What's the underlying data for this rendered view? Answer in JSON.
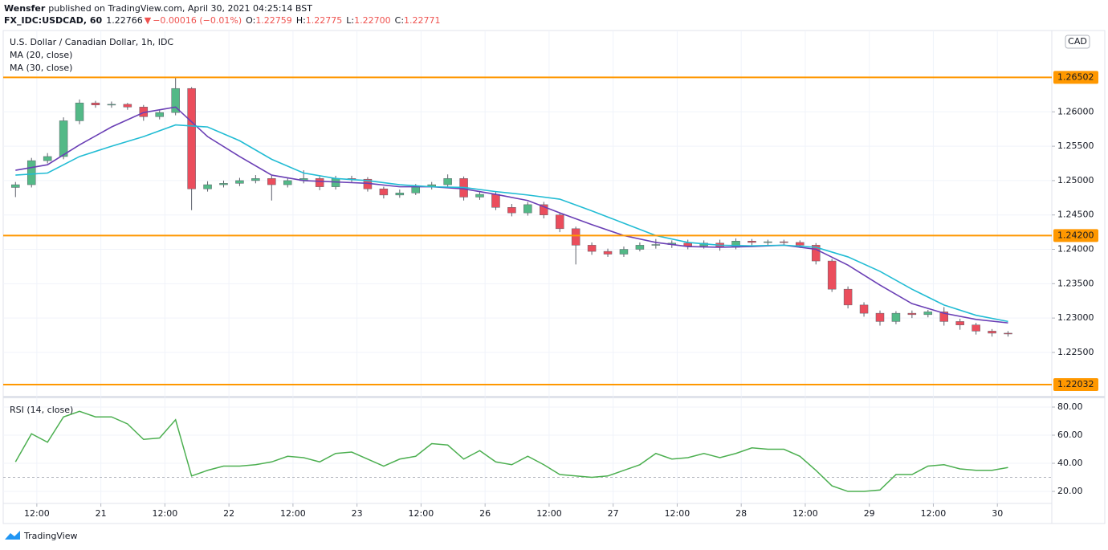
{
  "header": {
    "publisher": "Wensfer",
    "published": "published on TradingView.com, April 30, 2021 04:25:14 BST",
    "symbol": "FX_IDC:USDCAD, 60",
    "last": "1.22766",
    "direction": "▼",
    "change": "−0.00016 (−0.01%)",
    "ohlc": [
      {
        "label": "O:",
        "value": "1.22759"
      },
      {
        "label": "H:",
        "value": "1.22775"
      },
      {
        "label": "L:",
        "value": "1.22700"
      },
      {
        "label": "C:",
        "value": "1.22771"
      }
    ]
  },
  "footer": {
    "brand": "TradingView"
  },
  "chart_data": [
    {
      "type": "candlestick",
      "title": "U.S. Dollar / Canadian Dollar, 1h, IDC",
      "currency": "CAD",
      "up_color": "#53b987",
      "down_color": "#eb4d5c",
      "grid": true,
      "xlim": [
        5.7,
        202.2
      ],
      "ylim": [
        1.2188,
        1.2716
      ],
      "yticks": [
        {
          "value": 1.26,
          "label": "1.26000"
        },
        {
          "value": 1.255,
          "label": "1.25500"
        },
        {
          "value": 1.25,
          "label": "1.25000"
        },
        {
          "value": 1.245,
          "label": "1.24500"
        },
        {
          "value": 1.24,
          "label": "1.24000"
        },
        {
          "value": 1.235,
          "label": "1.23500"
        },
        {
          "value": 1.23,
          "label": "1.23000"
        },
        {
          "value": 1.225,
          "label": "1.22500"
        }
      ],
      "x": [
        8,
        11,
        14,
        17,
        20,
        23,
        26,
        29,
        32,
        35,
        38,
        41,
        44,
        47,
        50,
        53,
        56,
        59,
        62,
        65,
        68,
        71,
        74,
        77,
        80,
        83,
        86,
        89,
        92,
        95,
        98,
        101,
        104,
        107,
        110,
        113,
        116,
        119,
        122,
        125,
        128,
        131,
        134,
        137,
        140,
        143,
        146,
        149,
        152,
        155,
        158,
        161,
        164,
        167,
        170,
        173,
        176,
        179,
        182,
        185,
        188,
        191,
        194
      ],
      "open": [
        1.249,
        1.2494,
        1.2529,
        1.2535,
        1.2587,
        1.2613,
        1.261,
        1.2611,
        1.2607,
        1.2593,
        1.2599,
        1.2634,
        1.2488,
        1.2494,
        1.2496,
        1.25,
        1.2503,
        1.2494,
        1.25,
        1.2503,
        1.2491,
        1.2503,
        1.2502,
        1.2488,
        1.2479,
        1.2482,
        1.2491,
        1.2494,
        1.2503,
        1.2476,
        1.248,
        1.2461,
        1.2453,
        1.2465,
        1.245,
        1.243,
        1.2406,
        1.2397,
        1.2393,
        1.24,
        1.2406,
        1.2407,
        1.2409,
        1.2405,
        1.2409,
        1.2403,
        1.2412,
        1.241,
        1.2411,
        1.241,
        1.2406,
        1.2383,
        1.2342,
        1.2319,
        1.2307,
        1.2295,
        1.2307,
        1.2305,
        1.2309,
        1.2295,
        1.229,
        1.2281,
        1.2278
      ],
      "high": [
        1.2498,
        1.2533,
        1.254,
        1.2592,
        1.2618,
        1.2616,
        1.2615,
        1.2613,
        1.261,
        1.2603,
        1.265,
        1.2636,
        1.2499,
        1.25,
        1.2504,
        1.2508,
        1.2507,
        1.2504,
        1.2515,
        1.2506,
        1.2507,
        1.2507,
        1.2505,
        1.2491,
        1.2487,
        1.2495,
        1.2498,
        1.2509,
        1.2506,
        1.2484,
        1.2484,
        1.2466,
        1.2469,
        1.2469,
        1.2453,
        1.2433,
        1.241,
        1.2401,
        1.2404,
        1.241,
        1.2415,
        1.2413,
        1.2414,
        1.2413,
        1.2414,
        1.2416,
        1.2415,
        1.2414,
        1.2414,
        1.2413,
        1.2409,
        1.2386,
        1.2346,
        1.2323,
        1.2311,
        1.231,
        1.2311,
        1.2312,
        1.2316,
        1.2299,
        1.2293,
        1.2284,
        1.2281
      ],
      "low": [
        1.2476,
        1.249,
        1.2525,
        1.2531,
        1.2582,
        1.2606,
        1.2606,
        1.2603,
        1.2587,
        1.2589,
        1.2595,
        1.2457,
        1.2484,
        1.249,
        1.2492,
        1.2496,
        1.2471,
        1.249,
        1.2496,
        1.2486,
        1.2487,
        1.2498,
        1.2484,
        1.2474,
        1.2475,
        1.2479,
        1.2487,
        1.249,
        1.2471,
        1.2472,
        1.2457,
        1.2448,
        1.2449,
        1.2445,
        1.2425,
        1.2378,
        1.2392,
        1.2389,
        1.2389,
        1.2397,
        1.2401,
        1.2402,
        1.24,
        1.2401,
        1.2398,
        1.24,
        1.2406,
        1.2405,
        1.2406,
        1.2402,
        1.2378,
        1.2338,
        1.2314,
        1.2302,
        1.2289,
        1.2291,
        1.23,
        1.2301,
        1.2289,
        1.2283,
        1.2276,
        1.2273,
        1.2273
      ],
      "close": [
        1.2494,
        1.2529,
        1.2535,
        1.2587,
        1.2613,
        1.261,
        1.2611,
        1.2607,
        1.2593,
        1.2599,
        1.2634,
        1.2488,
        1.2494,
        1.2496,
        1.25,
        1.2503,
        1.2494,
        1.25,
        1.2503,
        1.2491,
        1.2503,
        1.2502,
        1.2488,
        1.2479,
        1.2482,
        1.2491,
        1.2494,
        1.2503,
        1.2476,
        1.248,
        1.2461,
        1.2453,
        1.2465,
        1.245,
        1.243,
        1.2406,
        1.2397,
        1.2393,
        1.24,
        1.2406,
        1.2407,
        1.2409,
        1.2405,
        1.2409,
        1.2403,
        1.2412,
        1.241,
        1.2411,
        1.241,
        1.2406,
        1.2383,
        1.2342,
        1.2319,
        1.2307,
        1.2295,
        1.2307,
        1.2305,
        1.2309,
        1.2295,
        1.229,
        1.2281,
        1.2278,
        1.2277
      ],
      "overlays": [
        {
          "name": "MA (20, close)",
          "color": "#6a3fb5",
          "x": [
            8,
            14,
            20,
            26,
            32,
            38,
            44,
            50,
            56,
            62,
            68,
            74,
            80,
            86,
            92,
            98,
            104,
            110,
            116,
            122,
            128,
            134,
            140,
            146,
            152,
            158,
            164,
            170,
            176,
            182,
            188,
            194
          ],
          "values": [
            1.2515,
            1.2523,
            1.2552,
            1.2578,
            1.2599,
            1.2607,
            1.2564,
            1.2535,
            1.2508,
            1.25,
            1.2498,
            1.2496,
            1.2491,
            1.2491,
            1.2488,
            1.248,
            1.2471,
            1.2453,
            1.2436,
            1.242,
            1.241,
            1.2404,
            1.2403,
            1.2404,
            1.2406,
            1.24,
            1.2377,
            1.2348,
            1.2321,
            1.2307,
            1.2298,
            1.2293
          ]
        },
        {
          "name": "MA (30, close)",
          "color": "#22bcd4",
          "x": [
            8,
            14,
            20,
            26,
            32,
            38,
            44,
            50,
            56,
            62,
            68,
            74,
            80,
            86,
            92,
            98,
            104,
            110,
            116,
            122,
            128,
            134,
            140,
            146,
            152,
            158,
            164,
            170,
            176,
            182,
            188,
            194
          ],
          "values": [
            1.2508,
            1.2511,
            1.2535,
            1.255,
            1.2564,
            1.2581,
            1.2578,
            1.2558,
            1.2531,
            1.2511,
            1.2503,
            1.25,
            1.2494,
            1.2491,
            1.249,
            1.2484,
            1.2479,
            1.2473,
            1.2456,
            1.2438,
            1.242,
            1.241,
            1.2406,
            1.2405,
            1.2406,
            1.2403,
            1.2389,
            1.2368,
            1.2342,
            1.2319,
            1.2304,
            1.2295
          ]
        }
      ],
      "hlines": [
        {
          "value": 1.26502,
          "label": "1.26502"
        },
        {
          "value": 1.242,
          "label": "1.24200"
        },
        {
          "value": 1.22032,
          "label": "1.22032"
        }
      ],
      "hline_color": "#ff9800"
    },
    {
      "type": "line",
      "grid": true,
      "xlim": [
        5.7,
        202.2
      ],
      "ylim": [
        12.6,
        85.7
      ],
      "yticks": [
        {
          "value": 80,
          "label": "80.00"
        },
        {
          "value": 60,
          "label": "60.00"
        },
        {
          "value": 40,
          "label": "40.00"
        },
        {
          "value": 20,
          "label": "20.00"
        }
      ],
      "bands": [
        30
      ],
      "xticks": [
        {
          "value": 12,
          "label": "12:00"
        },
        {
          "value": 24,
          "label": "21"
        },
        {
          "value": 36,
          "label": "12:00"
        },
        {
          "value": 48,
          "label": "22"
        },
        {
          "value": 60,
          "label": "12:00"
        },
        {
          "value": 72,
          "label": "23"
        },
        {
          "value": 84,
          "label": "12:00"
        },
        {
          "value": 96,
          "label": "26"
        },
        {
          "value": 108,
          "label": "12:00"
        },
        {
          "value": 120,
          "label": "27"
        },
        {
          "value": 132,
          "label": "12:00"
        },
        {
          "value": 144,
          "label": "28"
        },
        {
          "value": 156,
          "label": "12:00"
        },
        {
          "value": 168,
          "label": "29"
        },
        {
          "value": 180,
          "label": "12:00"
        },
        {
          "value": 192,
          "label": "30"
        }
      ],
      "series": [
        {
          "name": "RSI (14, close)",
          "color": "#4caf50",
          "x": [
            8,
            11,
            14,
            17,
            20,
            23,
            26,
            29,
            32,
            35,
            38,
            41,
            44,
            47,
            50,
            53,
            56,
            59,
            62,
            65,
            68,
            71,
            74,
            77,
            80,
            83,
            86,
            89,
            92,
            95,
            98,
            101,
            104,
            107,
            110,
            113,
            116,
            119,
            122,
            125,
            128,
            131,
            134,
            137,
            140,
            143,
            146,
            149,
            152,
            155,
            158,
            161,
            164,
            167,
            170,
            173,
            176,
            179,
            182,
            185,
            188,
            191,
            194
          ],
          "values": [
            41,
            61,
            55,
            73,
            77,
            73,
            73,
            68,
            57,
            58,
            71,
            31,
            35,
            38,
            38,
            39,
            41,
            45,
            44,
            41,
            47,
            48,
            43,
            38,
            43,
            45,
            54,
            53,
            43,
            49,
            41,
            39,
            45,
            39,
            32,
            31,
            30,
            31,
            35,
            39,
            47,
            43,
            44,
            47,
            44,
            47,
            51,
            50,
            50,
            45,
            35,
            24,
            20,
            20,
            21,
            32,
            32,
            38,
            39,
            36,
            35,
            35,
            37
          ]
        }
      ]
    }
  ]
}
